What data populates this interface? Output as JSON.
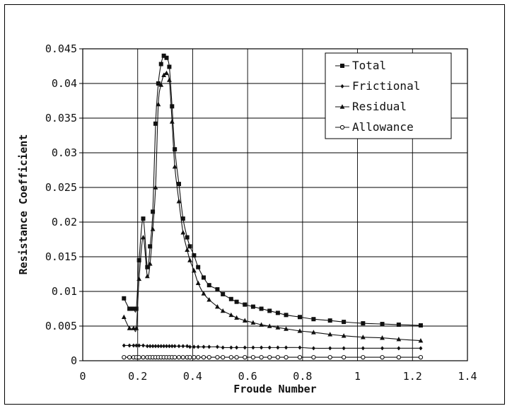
{
  "chart_data": {
    "type": "line",
    "xlabel": "Froude Number",
    "ylabel": "Resistance Coefficient",
    "xlim": [
      0,
      1.4
    ],
    "ylim": [
      0,
      0.045
    ],
    "x_ticks": [
      "0",
      "0.2",
      "0.4",
      "0.6",
      "0.8",
      "1",
      "1.2",
      "1.4"
    ],
    "y_ticks": [
      "0",
      "0.005",
      "0.01",
      "0.015",
      "0.02",
      "0.025",
      "0.03",
      "0.035",
      "0.04",
      "0.045"
    ],
    "grid": true,
    "legend_position": "top-right",
    "series": [
      {
        "name": "Total",
        "marker": "square",
        "x": [
          0.15,
          0.17,
          0.185,
          0.195,
          0.205,
          0.22,
          0.235,
          0.245,
          0.255,
          0.265,
          0.275,
          0.285,
          0.295,
          0.305,
          0.315,
          0.325,
          0.335,
          0.35,
          0.365,
          0.38,
          0.39,
          0.405,
          0.42,
          0.44,
          0.46,
          0.49,
          0.51,
          0.54,
          0.56,
          0.59,
          0.62,
          0.65,
          0.68,
          0.71,
          0.74,
          0.79,
          0.84,
          0.9,
          0.95,
          1.02,
          1.09,
          1.15,
          1.23
        ],
        "values": [
          0.009,
          0.0075,
          0.0075,
          0.0075,
          0.0145,
          0.0205,
          0.0135,
          0.0165,
          0.0215,
          0.0342,
          0.04,
          0.0428,
          0.044,
          0.0437,
          0.0424,
          0.0367,
          0.0305,
          0.0255,
          0.0205,
          0.0178,
          0.0165,
          0.0152,
          0.0135,
          0.012,
          0.0109,
          0.0103,
          0.0096,
          0.0089,
          0.0085,
          0.0081,
          0.0078,
          0.0075,
          0.0072,
          0.0069,
          0.0066,
          0.0063,
          0.006,
          0.0058,
          0.0056,
          0.0054,
          0.0053,
          0.0052,
          0.0051
        ]
      },
      {
        "name": "Frictional",
        "marker": "diamond",
        "x": [
          0.15,
          0.17,
          0.185,
          0.195,
          0.205,
          0.22,
          0.235,
          0.245,
          0.255,
          0.265,
          0.275,
          0.285,
          0.295,
          0.305,
          0.315,
          0.325,
          0.335,
          0.35,
          0.365,
          0.38,
          0.39,
          0.405,
          0.42,
          0.44,
          0.46,
          0.49,
          0.51,
          0.54,
          0.56,
          0.59,
          0.62,
          0.65,
          0.68,
          0.71,
          0.74,
          0.79,
          0.84,
          0.9,
          0.95,
          1.02,
          1.09,
          1.15,
          1.23
        ],
        "values": [
          0.0022,
          0.0022,
          0.0022,
          0.0022,
          0.0022,
          0.0022,
          0.0021,
          0.0021,
          0.0021,
          0.0021,
          0.0021,
          0.0021,
          0.0021,
          0.0021,
          0.0021,
          0.0021,
          0.0021,
          0.0021,
          0.0021,
          0.0021,
          0.002,
          0.002,
          0.002,
          0.002,
          0.002,
          0.002,
          0.0019,
          0.0019,
          0.0019,
          0.0019,
          0.0019,
          0.0019,
          0.0019,
          0.0019,
          0.0019,
          0.0019,
          0.0018,
          0.0018,
          0.0018,
          0.0018,
          0.0018,
          0.0018,
          0.0018
        ]
      },
      {
        "name": "Residual",
        "marker": "triangle",
        "x": [
          0.15,
          0.17,
          0.185,
          0.195,
          0.205,
          0.22,
          0.235,
          0.245,
          0.255,
          0.265,
          0.275,
          0.285,
          0.295,
          0.305,
          0.315,
          0.325,
          0.335,
          0.35,
          0.365,
          0.38,
          0.39,
          0.405,
          0.42,
          0.44,
          0.46,
          0.49,
          0.51,
          0.54,
          0.56,
          0.59,
          0.62,
          0.65,
          0.68,
          0.71,
          0.74,
          0.79,
          0.84,
          0.9,
          0.95,
          1.02,
          1.09,
          1.15,
          1.23
        ],
        "values": [
          0.0063,
          0.0047,
          0.0047,
          0.0047,
          0.0118,
          0.0178,
          0.0122,
          0.014,
          0.019,
          0.025,
          0.037,
          0.0398,
          0.0412,
          0.0415,
          0.0405,
          0.0345,
          0.028,
          0.023,
          0.0185,
          0.016,
          0.0145,
          0.013,
          0.0112,
          0.0097,
          0.0088,
          0.0078,
          0.0072,
          0.0066,
          0.0062,
          0.0058,
          0.0055,
          0.0052,
          0.005,
          0.0048,
          0.0046,
          0.0043,
          0.0041,
          0.0038,
          0.0036,
          0.0034,
          0.0033,
          0.0031,
          0.0029
        ]
      },
      {
        "name": "Allowance",
        "marker": "circle",
        "x": [
          0.15,
          0.17,
          0.185,
          0.195,
          0.205,
          0.22,
          0.235,
          0.245,
          0.255,
          0.265,
          0.275,
          0.285,
          0.295,
          0.305,
          0.315,
          0.325,
          0.335,
          0.35,
          0.365,
          0.38,
          0.39,
          0.405,
          0.42,
          0.44,
          0.46,
          0.49,
          0.51,
          0.54,
          0.56,
          0.59,
          0.62,
          0.65,
          0.68,
          0.71,
          0.74,
          0.79,
          0.84,
          0.9,
          0.95,
          1.02,
          1.09,
          1.15,
          1.23
        ],
        "values": [
          0.0005,
          0.0005,
          0.0005,
          0.0005,
          0.0005,
          0.0005,
          0.0005,
          0.0005,
          0.0005,
          0.0005,
          0.0005,
          0.0005,
          0.0005,
          0.0005,
          0.0005,
          0.0005,
          0.0005,
          0.0005,
          0.0005,
          0.0005,
          0.0005,
          0.0005,
          0.0005,
          0.0005,
          0.0005,
          0.0005,
          0.0005,
          0.0005,
          0.0005,
          0.0005,
          0.0005,
          0.0005,
          0.0005,
          0.0005,
          0.0005,
          0.0005,
          0.0005,
          0.0005,
          0.0005,
          0.0005,
          0.0005,
          0.0005,
          0.0005
        ]
      }
    ]
  }
}
